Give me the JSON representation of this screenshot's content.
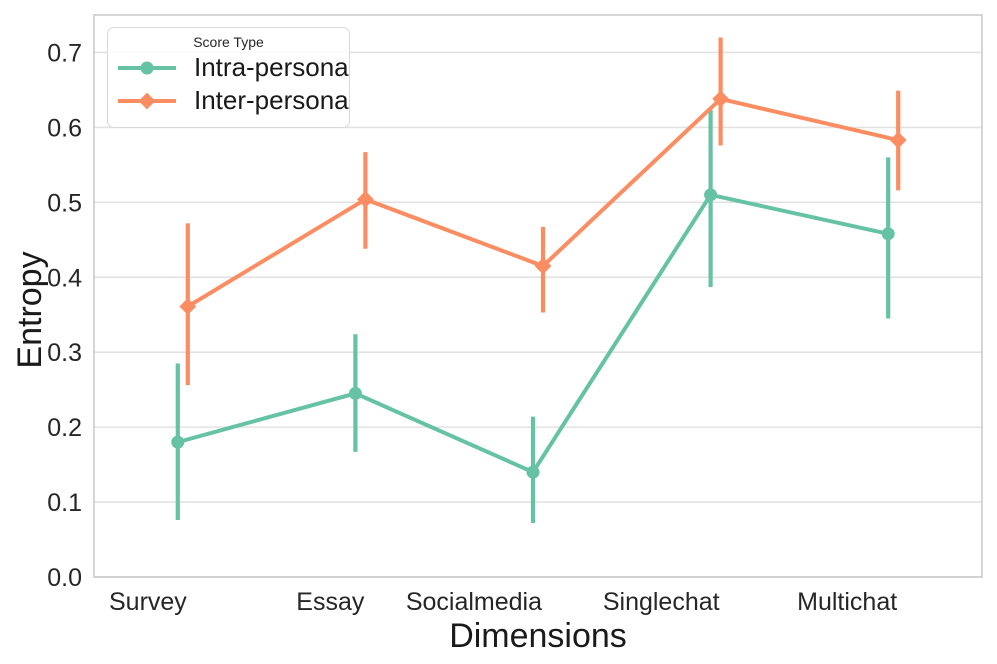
{
  "figure": {
    "background": "#ffffff"
  },
  "chart_data": {
    "type": "line",
    "title": "",
    "xlabel": "Dimensions",
    "ylabel": "Entropy",
    "categories": [
      "Survey",
      "Essay",
      "Socialmedia",
      "Singlechat",
      "Multichat"
    ],
    "ylim": [
      0.0,
      0.75
    ],
    "yticks": [
      0.0,
      0.1,
      0.2,
      0.3,
      0.4,
      0.5,
      0.6,
      0.7
    ],
    "grid": "horizontal",
    "legend": {
      "title": "Score Type",
      "position": "upper-left"
    },
    "series": [
      {
        "name": "Intra-persona",
        "color": "#66c2a5",
        "marker": "circle",
        "values": [
          0.18,
          0.245,
          0.14,
          0.51,
          0.458
        ],
        "err_low": [
          0.076,
          0.167,
          0.072,
          0.387,
          0.345
        ],
        "err_high": [
          0.285,
          0.324,
          0.214,
          0.623,
          0.56
        ]
      },
      {
        "name": "Inter-persona",
        "color": "#fc8d62",
        "marker": "diamond",
        "values": [
          0.361,
          0.504,
          0.415,
          0.638,
          0.583
        ],
        "err_low": [
          0.256,
          0.438,
          0.353,
          0.576,
          0.516
        ],
        "err_high": [
          0.472,
          0.567,
          0.467,
          0.72,
          0.649
        ]
      }
    ]
  },
  "colors": {
    "grid": "#e2e2e2",
    "spine": "#c9c9c9",
    "tick_text": "#262626",
    "label_text": "#1a1a1a"
  }
}
